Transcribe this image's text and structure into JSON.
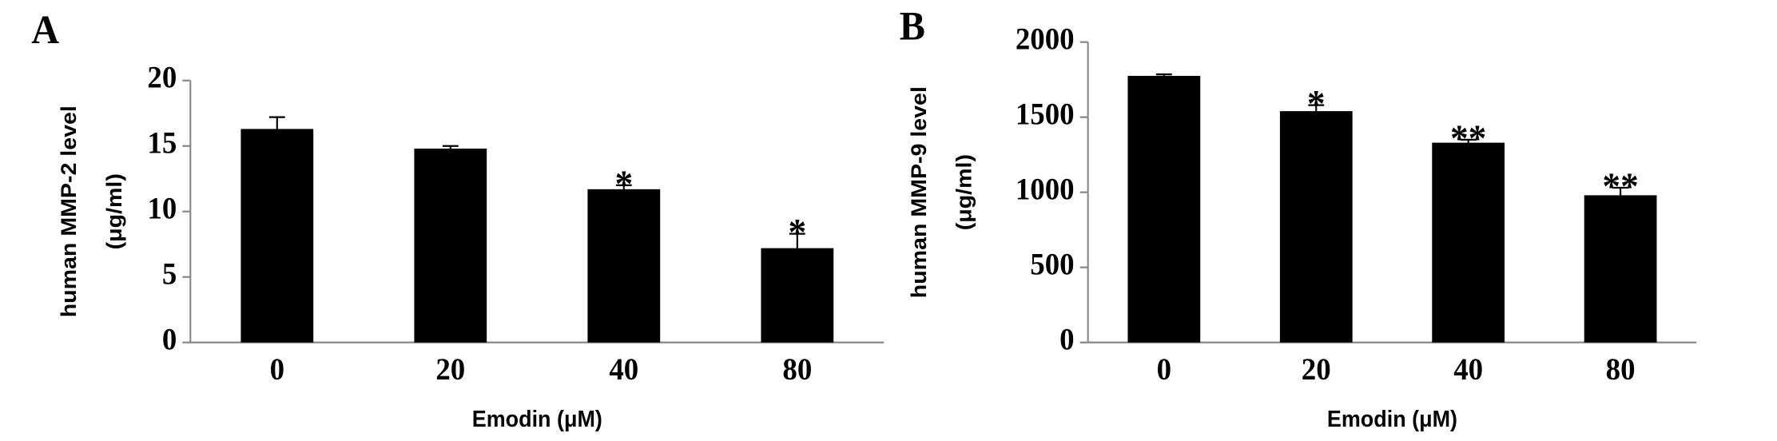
{
  "chart_data": [
    {
      "type": "bar",
      "panel_label": "A",
      "y_label": [
        "human MMP-2 level",
        "(μg/ml)"
      ],
      "x_label": "Emodin (μM)",
      "categories": [
        "0",
        "20",
        "40",
        "80"
      ],
      "values": [
        16.3,
        14.8,
        11.7,
        7.2
      ],
      "errors": [
        0.9,
        0.2,
        0.3,
        1.1
      ],
      "annotations": [
        null,
        null,
        "*",
        "*"
      ],
      "color": "#000000",
      "ylim": [
        0,
        20
      ],
      "yticks": [
        0,
        5,
        10,
        15,
        20
      ]
    },
    {
      "type": "bar",
      "panel_label": "B",
      "y_label": [
        "human MMP-9 level",
        "(μg/ml)"
      ],
      "x_label": "Emodin (μM)",
      "categories": [
        "0",
        "20",
        "40",
        "80"
      ],
      "values": [
        1775,
        1540,
        1330,
        980
      ],
      "errors": [
        10,
        40,
        20,
        50
      ],
      "annotations": [
        null,
        "*",
        "**",
        "**"
      ],
      "color": "#000000",
      "ylim": [
        0,
        2000
      ],
      "yticks": [
        0,
        500,
        1000,
        1500,
        2000
      ]
    }
  ]
}
